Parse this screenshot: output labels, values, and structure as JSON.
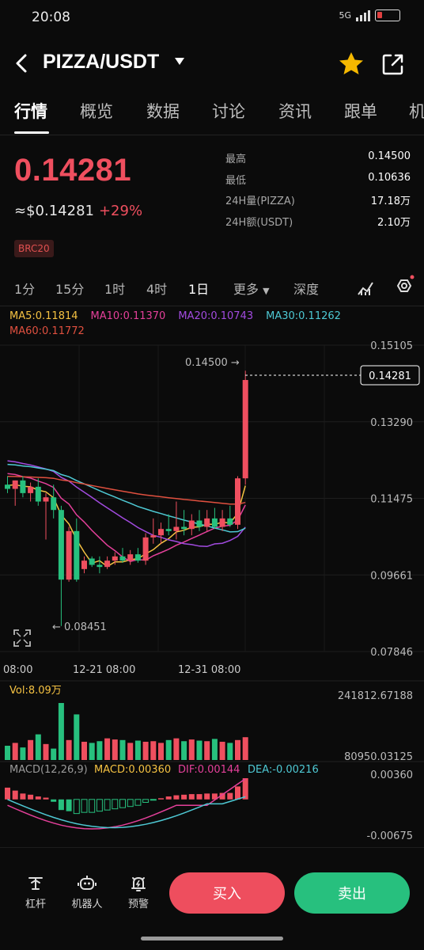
{
  "status": {
    "time": "20:08",
    "network": "5G"
  },
  "header": {
    "title": "PIZZA/USDT"
  },
  "tabs": [
    "行情",
    "概览",
    "数据",
    "讨论",
    "资讯",
    "跟单",
    "机"
  ],
  "price": {
    "last": "0.14281",
    "usd": "≈$0.14281",
    "change": "+29%",
    "badge": "BRC20"
  },
  "stats": [
    {
      "label": "最高",
      "value": "0.14500"
    },
    {
      "label": "最低",
      "value": "0.10636"
    },
    {
      "label": "24H量(PIZZA)",
      "value": "17.18万"
    },
    {
      "label": "24H额(USDT)",
      "value": "2.10万"
    }
  ],
  "intervals": [
    "1分",
    "15分",
    "1时",
    "4时",
    "1日",
    "更多",
    "深度"
  ],
  "ma": {
    "ma5": "MA5:0.11814",
    "ma10": "MA10:0.11370",
    "ma20": "MA20:0.10743",
    "ma30": "MA30:0.11262",
    "ma60": "MA60:0.11772"
  },
  "colors": {
    "up": "#ef4f5f",
    "down": "#27c07e",
    "ma5": "#f5c242",
    "ma10": "#e4409a",
    "ma20": "#a24be0",
    "ma30": "#4ec9d4",
    "ma60": "#e0503f"
  },
  "chart_data": {
    "type": "candlestick",
    "price_axis": [
      "0.15105",
      "0.13290",
      "0.11475",
      "0.09661",
      "0.07846"
    ],
    "price_range": [
      0.07846,
      0.15105
    ],
    "x_labels": [
      "08:00",
      "12-21 08:00",
      "12-31 08:00"
    ],
    "high_label": "0.14500 →",
    "low_label": "← 0.08451",
    "current_price": "0.14281",
    "candles": [
      {
        "o": 0.118,
        "h": 0.12,
        "l": 0.116,
        "c": 0.117
      },
      {
        "o": 0.117,
        "h": 0.119,
        "l": 0.113,
        "c": 0.119
      },
      {
        "o": 0.119,
        "h": 0.12,
        "l": 0.115,
        "c": 0.116
      },
      {
        "o": 0.116,
        "h": 0.1185,
        "l": 0.114,
        "c": 0.1175
      },
      {
        "o": 0.1175,
        "h": 0.1195,
        "l": 0.113,
        "c": 0.114
      },
      {
        "o": 0.114,
        "h": 0.116,
        "l": 0.105,
        "c": 0.115
      },
      {
        "o": 0.115,
        "h": 0.118,
        "l": 0.11,
        "c": 0.112
      },
      {
        "o": 0.112,
        "h": 0.113,
        "l": 0.0845,
        "c": 0.0955
      },
      {
        "o": 0.0955,
        "h": 0.108,
        "l": 0.095,
        "c": 0.107
      },
      {
        "o": 0.107,
        "h": 0.11,
        "l": 0.095,
        "c": 0.0955
      },
      {
        "o": 0.098,
        "h": 0.101,
        "l": 0.097,
        "c": 0.1
      },
      {
        "o": 0.1005,
        "h": 0.101,
        "l": 0.0985,
        "c": 0.099
      },
      {
        "o": 0.099,
        "h": 0.101,
        "l": 0.097,
        "c": 0.0985
      },
      {
        "o": 0.0985,
        "h": 0.101,
        "l": 0.098,
        "c": 0.1
      },
      {
        "o": 0.1,
        "h": 0.102,
        "l": 0.099,
        "c": 0.101
      },
      {
        "o": 0.101,
        "h": 0.103,
        "l": 0.0995,
        "c": 0.1
      },
      {
        "o": 0.1,
        "h": 0.1025,
        "l": 0.099,
        "c": 0.1015
      },
      {
        "o": 0.1015,
        "h": 0.103,
        "l": 0.0995,
        "c": 0.1
      },
      {
        "o": 0.1,
        "h": 0.1065,
        "l": 0.099,
        "c": 0.1055
      },
      {
        "o": 0.1055,
        "h": 0.11,
        "l": 0.104,
        "c": 0.106
      },
      {
        "o": 0.106,
        "h": 0.109,
        "l": 0.104,
        "c": 0.1075
      },
      {
        "o": 0.1075,
        "h": 0.111,
        "l": 0.106,
        "c": 0.107
      },
      {
        "o": 0.107,
        "h": 0.114,
        "l": 0.105,
        "c": 0.108
      },
      {
        "o": 0.108,
        "h": 0.112,
        "l": 0.106,
        "c": 0.1075
      },
      {
        "o": 0.1075,
        "h": 0.111,
        "l": 0.106,
        "c": 0.1095
      },
      {
        "o": 0.1095,
        "h": 0.112,
        "l": 0.107,
        "c": 0.108
      },
      {
        "o": 0.108,
        "h": 0.112,
        "l": 0.107,
        "c": 0.11
      },
      {
        "o": 0.11,
        "h": 0.1125,
        "l": 0.1075,
        "c": 0.108
      },
      {
        "o": 0.108,
        "h": 0.112,
        "l": 0.107,
        "c": 0.11
      },
      {
        "o": 0.11,
        "h": 0.113,
        "l": 0.108,
        "c": 0.1085
      },
      {
        "o": 0.1085,
        "h": 0.12,
        "l": 0.1075,
        "c": 0.1195
      },
      {
        "o": 0.1195,
        "h": 0.145,
        "l": 0.118,
        "c": 0.1428
      }
    ],
    "volume": {
      "axis": [
        "241812.67188",
        "80950.03125"
      ],
      "label": "Vol:8.09万",
      "values": [
        0.25,
        0.3,
        0.22,
        0.35,
        0.45,
        0.28,
        0.2,
        1.0,
        0.35,
        0.8,
        0.32,
        0.3,
        0.33,
        0.38,
        0.36,
        0.35,
        0.3,
        0.34,
        0.32,
        0.33,
        0.3,
        0.35,
        0.38,
        0.33,
        0.36,
        0.34,
        0.33,
        0.37,
        0.32,
        0.3,
        0.35,
        0.4
      ]
    },
    "macd": {
      "axis": [
        "0.00360",
        "-0.00675"
      ],
      "labels": {
        "name": "MACD(12,26,9)",
        "macd": "MACD:0.00360",
        "dif": "DIF:0.00144",
        "dea": "DEA:-0.00216"
      },
      "hist": [
        0.002,
        0.0015,
        0.001,
        0.0008,
        0.0005,
        0.0003,
        -0.0004,
        -0.0018,
        -0.002,
        -0.0024,
        -0.0022,
        -0.0022,
        -0.002,
        -0.0018,
        -0.0016,
        -0.0014,
        -0.0012,
        -0.001,
        -0.0005,
        -0.0001,
        0.0002,
        0.0005,
        0.0007,
        0.0008,
        0.0009,
        0.0009,
        0.001,
        0.001,
        0.0011,
        0.0011,
        0.0022,
        0.0036
      ]
    }
  },
  "bottom": {
    "items": [
      "杠杆",
      "机器人",
      "预警"
    ],
    "buy": "买入",
    "sell": "卖出"
  }
}
